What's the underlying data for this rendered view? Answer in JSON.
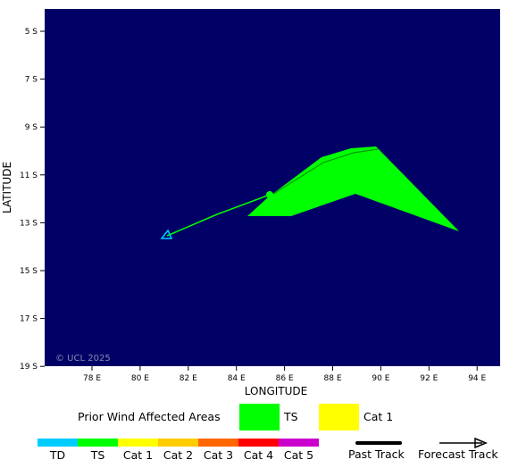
{
  "map": {
    "watermark": "© UCL 2025",
    "xaxis_title": "LONGITUDE",
    "yaxis_title": "LATITUDE",
    "x_ticks": [
      "78 E",
      "80 E",
      "82 E",
      "84 E",
      "86 E",
      "88 E",
      "90 E",
      "92 E",
      "94 E"
    ],
    "y_ticks": [
      "5 S",
      "7 S",
      "9 S",
      "11 S",
      "13 S",
      "15 S",
      "17 S",
      "19 S"
    ],
    "ocean_color": "#000066"
  },
  "legend": {
    "title": "Prior Wind Affected Areas",
    "ts_label": "TS",
    "cat1_label": "Cat 1",
    "ts_color": "#00ff00",
    "cat1_color": "#ffff00"
  },
  "scale": {
    "items": [
      {
        "label": "TD",
        "color": "#00ccff"
      },
      {
        "label": "TS",
        "color": "#00ff00"
      },
      {
        "label": "Cat 1",
        "color": "#ffff00"
      },
      {
        "label": "Cat 2",
        "color": "#ffcc00"
      },
      {
        "label": "Cat 3",
        "color": "#ff6600"
      },
      {
        "label": "Cat 4",
        "color": "#ff0000"
      },
      {
        "label": "Cat 5",
        "color": "#cc00cc"
      }
    ],
    "past_track_label": "Past Track",
    "forecast_track_label": "Forecast Track"
  }
}
